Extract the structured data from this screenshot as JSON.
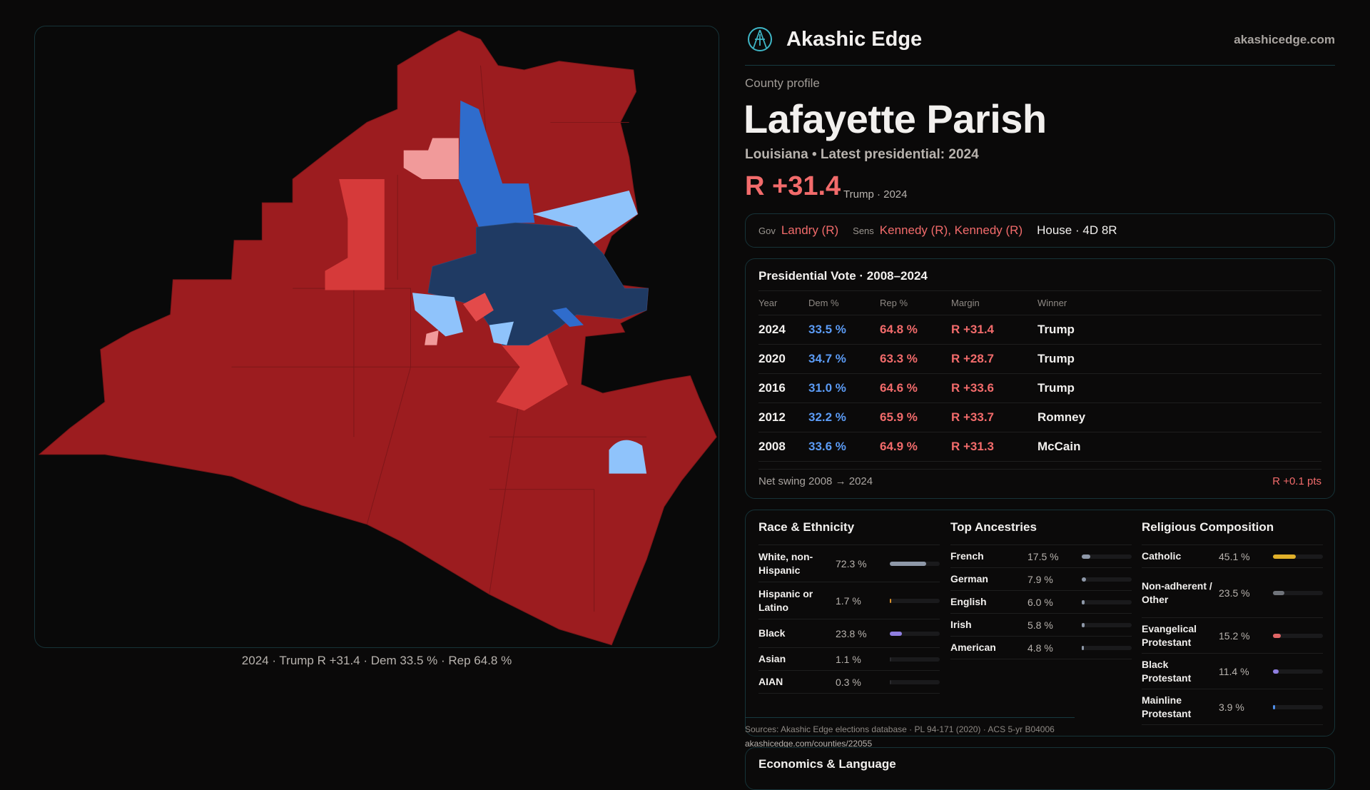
{
  "brand": {
    "name": "Akashic Edge",
    "site": "akashicedge.com"
  },
  "profile": {
    "kicker": "County profile",
    "title": "Lafayette Parish",
    "subtitle": "Louisiana • Latest presidential: 2024",
    "margin": "R +31.4",
    "margin_sub": "Trump · 2024"
  },
  "officials": {
    "gov_label": "Gov",
    "gov": "Landry (R)",
    "sens_label": "Sens",
    "sens": "Kennedy (R), Kennedy (R)",
    "house": "House · 4D 8R"
  },
  "map": {
    "caption": "2024 · Trump R +31.4 · Dem 33.5 % · Rep 64.8 %",
    "colors": {
      "safe_r": "#9c1c1f",
      "lean_r": "#d63a3a",
      "tilt_r": "#f19a9a",
      "safe_d": "#1f3a63",
      "lean_d": "#2f6ccc",
      "tilt_d": "#8fc3fb"
    }
  },
  "presidential": {
    "title": "Presidential Vote · 2008–2024",
    "headers": [
      "Year",
      "Dem %",
      "Rep %",
      "Margin",
      "Winner"
    ],
    "rows": [
      {
        "year": "2024",
        "dem": "33.5 %",
        "rep": "64.8 %",
        "margin": "R +31.4",
        "winner": "Trump"
      },
      {
        "year": "2020",
        "dem": "34.7 %",
        "rep": "63.3 %",
        "margin": "R +28.7",
        "winner": "Trump"
      },
      {
        "year": "2016",
        "dem": "31.0 %",
        "rep": "64.6 %",
        "margin": "R +33.6",
        "winner": "Trump"
      },
      {
        "year": "2012",
        "dem": "32.2 %",
        "rep": "65.9 %",
        "margin": "R +33.7",
        "winner": "Romney"
      },
      {
        "year": "2008",
        "dem": "33.6 %",
        "rep": "64.9 %",
        "margin": "R +31.3",
        "winner": "McCain"
      }
    ],
    "swing_label": "Net swing 2008 → 2024",
    "swing_value": "R +0.1 pts"
  },
  "race": {
    "title": "Race & Ethnicity",
    "items": [
      {
        "name": "White, non-Hispanic",
        "value": "72.3 %",
        "pct": 72.3,
        "color": "#8e98a8"
      },
      {
        "name": "Hispanic or Latino",
        "value": "1.7 %",
        "pct": 1.7,
        "color": "#d9902a"
      },
      {
        "name": "Black",
        "value": "23.8 %",
        "pct": 23.8,
        "color": "#8f7ee0"
      },
      {
        "name": "Asian",
        "value": "1.1 %",
        "pct": 1.1,
        "color": "#2a2a2e"
      },
      {
        "name": "AIAN",
        "value": "0.3 %",
        "pct": 0.3,
        "color": "#2a2a2e"
      }
    ]
  },
  "ancestry": {
    "title": "Top Ancestries",
    "items": [
      {
        "name": "French",
        "value": "17.5 %",
        "pct": 17.5,
        "color": "#8e98a8"
      },
      {
        "name": "German",
        "value": "7.9 %",
        "pct": 7.9,
        "color": "#8e98a8"
      },
      {
        "name": "English",
        "value": "6.0 %",
        "pct": 6.0,
        "color": "#8e98a8"
      },
      {
        "name": "Irish",
        "value": "5.8 %",
        "pct": 5.8,
        "color": "#8e98a8"
      },
      {
        "name": "American",
        "value": "4.8 %",
        "pct": 4.8,
        "color": "#8e98a8"
      }
    ]
  },
  "religion": {
    "title": "Religious Composition",
    "items": [
      {
        "name": "Catholic",
        "value": "45.1 %",
        "pct": 45.1,
        "color": "#e0b02a"
      },
      {
        "name": "Non-adherent / Other",
        "value": "23.5 %",
        "pct": 23.5,
        "color": "#6f737a"
      },
      {
        "name": "Evangelical Protestant",
        "value": "15.2 %",
        "pct": 15.2,
        "color": "#e06565"
      },
      {
        "name": "Black Protestant",
        "value": "11.4 %",
        "pct": 11.4,
        "color": "#8f7ee0"
      },
      {
        "name": "Mainline Protestant",
        "value": "3.9 %",
        "pct": 3.9,
        "color": "#4f8ee8"
      }
    ]
  },
  "sources": {
    "text": "Sources: Akashic Edge elections database · PL 94-171 (2020) · ACS 5-yr B04006",
    "link": "akashicedge.com/counties/22055"
  },
  "economics": {
    "title": "Economics & Language"
  }
}
